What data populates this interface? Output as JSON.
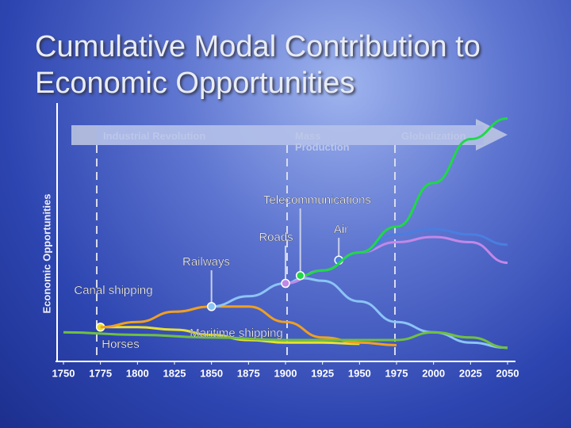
{
  "chart_data": {
    "type": "line",
    "title": "Cumulative Modal Contribution to Economic Opportunities",
    "y_label": "Economic Opportunities",
    "phases": [
      "Industrial Revolution",
      "Mass Production",
      "Globalization"
    ],
    "xlim": [
      1750,
      2050
    ],
    "xticks": [
      1750,
      1775,
      1800,
      1825,
      1850,
      1875,
      1900,
      1925,
      1950,
      1975,
      2000,
      2025,
      2050
    ],
    "ylim": [
      0,
      100
    ],
    "series": [
      {
        "name": "Horses",
        "color": "#e8e030",
        "x": [
          1775,
          1800,
          1825,
          1850,
          1875,
          1900,
          1925,
          1950
        ],
        "values": [
          13,
          13,
          12,
          10,
          8,
          7,
          7,
          6.5
        ]
      },
      {
        "name": "Canal shipping",
        "color": "#f0a020",
        "x": [
          1775,
          1800,
          1825,
          1850,
          1875,
          1900,
          1925,
          1950,
          1975
        ],
        "values": [
          13,
          15,
          19,
          21,
          21,
          15,
          9,
          7,
          6
        ]
      },
      {
        "name": "Railways",
        "color": "#8cc4f4",
        "x": [
          1850,
          1875,
          1900,
          1912,
          1925,
          1950,
          1975,
          2000,
          2025,
          2050
        ],
        "values": [
          21,
          25,
          30,
          32,
          31,
          23,
          15,
          11,
          7,
          5
        ]
      },
      {
        "name": "Maritime shipping",
        "color": "#70c040",
        "x": [
          1750,
          1800,
          1850,
          1900,
          1950,
          1975,
          2000,
          2025,
          2050
        ],
        "values": [
          11,
          10,
          9,
          8,
          8,
          8,
          11,
          9,
          5
        ]
      },
      {
        "name": "Roads",
        "color": "#c088e8",
        "x": [
          1900,
          1925,
          1950,
          1975,
          2000,
          2025,
          2050
        ],
        "values": [
          30,
          35,
          42,
          46,
          48,
          46,
          38
        ]
      },
      {
        "name": "Air",
        "color": "#4a7ee0",
        "x": [
          1936,
          1950,
          1975,
          2000,
          2025,
          2050
        ],
        "values": [
          39,
          42,
          49,
          51,
          49,
          45
        ]
      },
      {
        "name": "Telecommunications",
        "color": "#20d848",
        "x": [
          1910,
          1925,
          1950,
          1975,
          2000,
          2025,
          2050
        ],
        "values": [
          33,
          35,
          42,
          52,
          69,
          86,
          94
        ]
      }
    ]
  }
}
